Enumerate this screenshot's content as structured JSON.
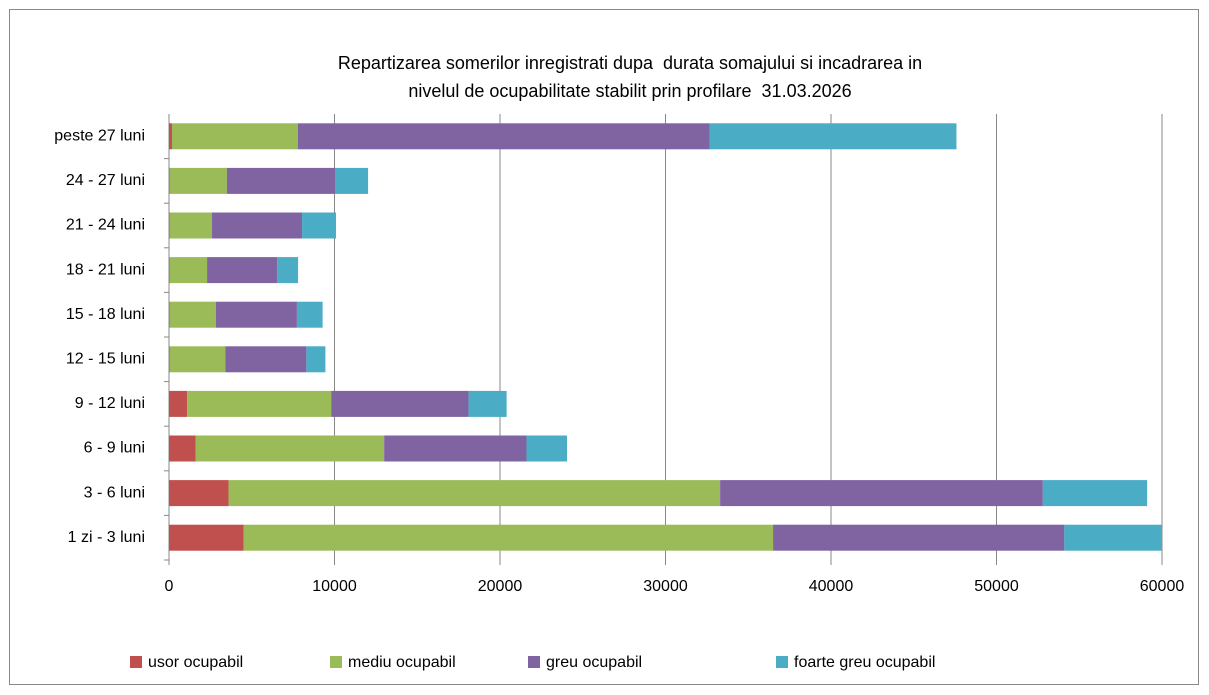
{
  "chart_data": {
    "type": "stacked-barh",
    "title": [
      "Repartizarea somerilor inregistrati dupa  durata somajului si incadrarea in",
      "nivelul de ocupabilitate stabilit prin profilare  31.03.2026"
    ],
    "categories": [
      "1 zi - 3 luni",
      "3 - 6 luni",
      "6 - 9 luni",
      "9 - 12 luni",
      "12 - 15 luni",
      "15 - 18 luni",
      "18 - 21 luni",
      "21 - 24 luni",
      "24 - 27 luni",
      "peste 27 luni"
    ],
    "series": [
      {
        "name": "usor ocupabil",
        "color": "#c0504d",
        "values": [
          4500,
          3600,
          1600,
          1100,
          50,
          30,
          30,
          30,
          30,
          180
        ]
      },
      {
        "name": "mediu ocupabil",
        "color": "#9bbb59",
        "values": [
          32000,
          29700,
          11400,
          8700,
          3350,
          2800,
          2270,
          2570,
          3470,
          7600
        ]
      },
      {
        "name": "greu ocupabil",
        "color": "#8064a2",
        "values": [
          17600,
          19500,
          8600,
          8300,
          4900,
          4900,
          4230,
          5440,
          6530,
          24900
        ]
      },
      {
        "name": "foarte greu ocupabil",
        "color": "#4bacc6",
        "values": [
          5900,
          6300,
          2450,
          2300,
          1150,
          1550,
          1270,
          2050,
          2000,
          14900
        ]
      }
    ],
    "xlim": [
      0,
      60000
    ],
    "xticks": [
      0,
      10000,
      20000,
      30000,
      40000,
      50000,
      60000
    ],
    "grid": true,
    "legend": "bottom"
  }
}
